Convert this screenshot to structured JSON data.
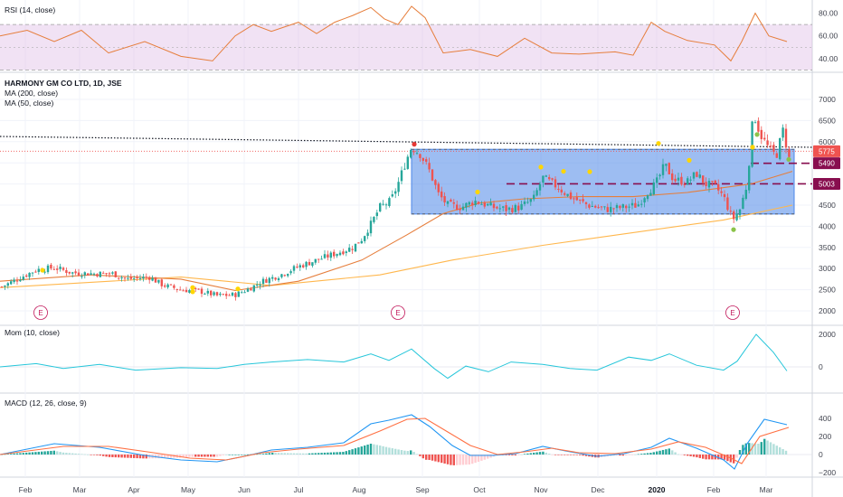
{
  "colors": {
    "background": "#ffffff",
    "up": "#26a69a",
    "down": "#ef5350",
    "ma200": "#ffb74d",
    "ma50": "#e67e3c",
    "rsi": "#e67e3c",
    "rsi_band": "#e1bee7",
    "momentum": "#26c6da",
    "macd": "#2196f3",
    "signal": "#ff7043",
    "box": "#4c86e8",
    "level": "#880e4f",
    "dot_yellow": "#ffd600",
    "dot_green": "#8bc34a",
    "dot_red": "#e53935",
    "earnings": "#c2185b"
  },
  "panes": {
    "rsi": {
      "label": "RSI (14, close)",
      "ticks": [
        "80.00",
        "60.00",
        "40.00"
      ]
    },
    "price": {
      "title": "HARMONY GM CO LTD, 1D, JSE",
      "ma200_label": "MA (200, close)",
      "ma50_label": "MA (50, close)",
      "ticks": [
        "7000",
        "6500",
        "6000",
        "5500",
        "5000",
        "4500",
        "4000",
        "3500",
        "3000",
        "2500",
        "2000"
      ],
      "badges": [
        "5775",
        "5490",
        "5003"
      ],
      "earnings_marker": "E"
    },
    "momentum": {
      "label": "Mom (10, close)",
      "ticks": [
        "2000",
        "0"
      ]
    },
    "macd": {
      "label": "MACD (12, 26, close, 9)",
      "ticks": [
        "400",
        "200",
        "0",
        "−200"
      ]
    }
  },
  "x_axis": {
    "labels": [
      {
        "text": "Feb",
        "bold": false
      },
      {
        "text": "Mar",
        "bold": false
      },
      {
        "text": "Apr",
        "bold": false
      },
      {
        "text": "May",
        "bold": false
      },
      {
        "text": "Jun",
        "bold": false
      },
      {
        "text": "Jul",
        "bold": false
      },
      {
        "text": "Aug",
        "bold": false
      },
      {
        "text": "Sep",
        "bold": false
      },
      {
        "text": "Oct",
        "bold": false
      },
      {
        "text": "Nov",
        "bold": false
      },
      {
        "text": "Dec",
        "bold": false
      },
      {
        "text": "2020",
        "bold": true
      },
      {
        "text": "Feb",
        "bold": false
      },
      {
        "text": "Mar",
        "bold": false
      }
    ]
  },
  "chart_data": {
    "type": "candlestick",
    "symbol": "HARMONY GM CO LTD",
    "interval": "1D",
    "exchange": "JSE",
    "price_range": [
      1750,
      7400
    ],
    "price_points": [
      [
        0,
        2550
      ],
      [
        20,
        2760
      ],
      [
        40,
        2970
      ],
      [
        60,
        3020
      ],
      [
        80,
        2900
      ],
      [
        105,
        2880
      ],
      [
        125,
        2880
      ],
      [
        140,
        2750
      ],
      [
        165,
        2800
      ],
      [
        180,
        2610
      ],
      [
        200,
        2500
      ],
      [
        220,
        2470
      ],
      [
        240,
        2360
      ],
      [
        260,
        2380
      ],
      [
        275,
        2520
      ],
      [
        290,
        2700
      ],
      [
        310,
        2850
      ],
      [
        330,
        3050
      ],
      [
        350,
        3200
      ],
      [
        370,
        3350
      ],
      [
        390,
        3500
      ],
      [
        400,
        3700
      ],
      [
        410,
        4050
      ],
      [
        420,
        4450
      ],
      [
        432,
        4600
      ],
      [
        440,
        5000
      ],
      [
        448,
        5500
      ],
      [
        455,
        5880
      ],
      [
        465,
        5700
      ],
      [
        475,
        5300
      ],
      [
        485,
        4750
      ],
      [
        495,
        4500
      ],
      [
        510,
        4450
      ],
      [
        525,
        4600
      ],
      [
        545,
        4450
      ],
      [
        560,
        4400
      ],
      [
        575,
        4450
      ],
      [
        590,
        4650
      ],
      [
        600,
        5150
      ],
      [
        615,
        4950
      ],
      [
        630,
        4700
      ],
      [
        650,
        4500
      ],
      [
        670,
        4400
      ],
      [
        690,
        4450
      ],
      [
        705,
        4500
      ],
      [
        715,
        4800
      ],
      [
        725,
        5000
      ],
      [
        735,
        5450
      ],
      [
        745,
        5100
      ],
      [
        760,
        5050
      ],
      [
        770,
        5250
      ],
      [
        780,
        5000
      ],
      [
        790,
        4950
      ],
      [
        800,
        4700
      ],
      [
        810,
        4150
      ],
      [
        818,
        4400
      ],
      [
        826,
        5000
      ],
      [
        833,
        6700
      ],
      [
        840,
        6200
      ],
      [
        848,
        5900
      ],
      [
        858,
        5650
      ],
      [
        866,
        6300
      ],
      [
        872,
        5600
      ]
    ],
    "ma200_points": [
      [
        0,
        2550
      ],
      [
        200,
        2800
      ],
      [
        300,
        2600
      ],
      [
        420,
        2850
      ],
      [
        500,
        3200
      ],
      [
        600,
        3550
      ],
      [
        700,
        3850
      ],
      [
        800,
        4150
      ],
      [
        876,
        4500
      ]
    ],
    "ma50_points": [
      [
        0,
        2700
      ],
      [
        100,
        2850
      ],
      [
        200,
        2750
      ],
      [
        260,
        2480
      ],
      [
        330,
        2700
      ],
      [
        400,
        3200
      ],
      [
        450,
        3800
      ],
      [
        490,
        4300
      ],
      [
        530,
        4550
      ],
      [
        580,
        4650
      ],
      [
        640,
        4700
      ],
      [
        700,
        4700
      ],
      [
        760,
        4800
      ],
      [
        830,
        5000
      ],
      [
        876,
        5300
      ]
    ],
    "rsi_points": [
      [
        0,
        60
      ],
      [
        30,
        65
      ],
      [
        60,
        55
      ],
      [
        90,
        65
      ],
      [
        120,
        45
      ],
      [
        160,
        55
      ],
      [
        200,
        42
      ],
      [
        235,
        38
      ],
      [
        260,
        60
      ],
      [
        280,
        70
      ],
      [
        300,
        64
      ],
      [
        330,
        72
      ],
      [
        350,
        62
      ],
      [
        370,
        72
      ],
      [
        390,
        78
      ],
      [
        410,
        85
      ],
      [
        425,
        75
      ],
      [
        440,
        70
      ],
      [
        455,
        86
      ],
      [
        470,
        76
      ],
      [
        490,
        45
      ],
      [
        520,
        48
      ],
      [
        550,
        42
      ],
      [
        580,
        58
      ],
      [
        610,
        45
      ],
      [
        640,
        44
      ],
      [
        680,
        46
      ],
      [
        700,
        43
      ],
      [
        720,
        72
      ],
      [
        735,
        64
      ],
      [
        760,
        56
      ],
      [
        790,
        52
      ],
      [
        808,
        38
      ],
      [
        820,
        55
      ],
      [
        835,
        80
      ],
      [
        850,
        60
      ],
      [
        870,
        55
      ]
    ],
    "momentum_points": [
      [
        0,
        0
      ],
      [
        40,
        200
      ],
      [
        70,
        -100
      ],
      [
        110,
        150
      ],
      [
        150,
        -200
      ],
      [
        200,
        -50
      ],
      [
        240,
        -100
      ],
      [
        270,
        150
      ],
      [
        300,
        300
      ],
      [
        340,
        450
      ],
      [
        380,
        300
      ],
      [
        410,
        800
      ],
      [
        430,
        400
      ],
      [
        455,
        1100
      ],
      [
        480,
        -100
      ],
      [
        495,
        -700
      ],
      [
        515,
        50
      ],
      [
        540,
        -300
      ],
      [
        565,
        300
      ],
      [
        600,
        150
      ],
      [
        630,
        -100
      ],
      [
        660,
        -200
      ],
      [
        695,
        600
      ],
      [
        720,
        400
      ],
      [
        740,
        800
      ],
      [
        770,
        100
      ],
      [
        800,
        -200
      ],
      [
        815,
        350
      ],
      [
        836,
        2000
      ],
      [
        855,
        900
      ],
      [
        870,
        -250
      ]
    ],
    "macd_points": [
      [
        0,
        0
      ],
      [
        60,
        120
      ],
      [
        110,
        80
      ],
      [
        160,
        -10
      ],
      [
        200,
        -60
      ],
      [
        240,
        -80
      ],
      [
        270,
        -20
      ],
      [
        300,
        50
      ],
      [
        340,
        80
      ],
      [
        380,
        130
      ],
      [
        410,
        340
      ],
      [
        430,
        380
      ],
      [
        455,
        440
      ],
      [
        475,
        310
      ],
      [
        500,
        100
      ],
      [
        520,
        -10
      ],
      [
        545,
        -10
      ],
      [
        570,
        10
      ],
      [
        600,
        90
      ],
      [
        625,
        40
      ],
      [
        660,
        -20
      ],
      [
        690,
        10
      ],
      [
        720,
        80
      ],
      [
        740,
        180
      ],
      [
        770,
        70
      ],
      [
        800,
        -60
      ],
      [
        812,
        -160
      ],
      [
        826,
        120
      ],
      [
        845,
        390
      ],
      [
        870,
        330
      ]
    ],
    "signal_points": [
      [
        0,
        0
      ],
      [
        70,
        90
      ],
      [
        120,
        90
      ],
      [
        170,
        20
      ],
      [
        210,
        -40
      ],
      [
        250,
        -60
      ],
      [
        290,
        20
      ],
      [
        330,
        60
      ],
      [
        380,
        100
      ],
      [
        420,
        260
      ],
      [
        450,
        390
      ],
      [
        470,
        400
      ],
      [
        495,
        250
      ],
      [
        520,
        100
      ],
      [
        550,
        0
      ],
      [
        580,
        30
      ],
      [
        610,
        70
      ],
      [
        640,
        20
      ],
      [
        680,
        10
      ],
      [
        720,
        60
      ],
      [
        750,
        140
      ],
      [
        780,
        80
      ],
      [
        808,
        -40
      ],
      [
        820,
        -100
      ],
      [
        840,
        200
      ],
      [
        872,
        300
      ]
    ],
    "box": {
      "start_x": 455,
      "end_x": 878,
      "top": 5820,
      "bottom": 4290
    },
    "horizontal_levels": [
      {
        "price": 5775,
        "style": "dotted",
        "color": "red"
      },
      {
        "price": 5490,
        "style": "dashed",
        "color": "maroon"
      },
      {
        "price": 5003,
        "style": "dashed",
        "color": "maroon"
      }
    ],
    "ma200_last": 4500,
    "ma50_last": 5300,
    "earnings_x": [
      45,
      440,
      810
    ]
  }
}
